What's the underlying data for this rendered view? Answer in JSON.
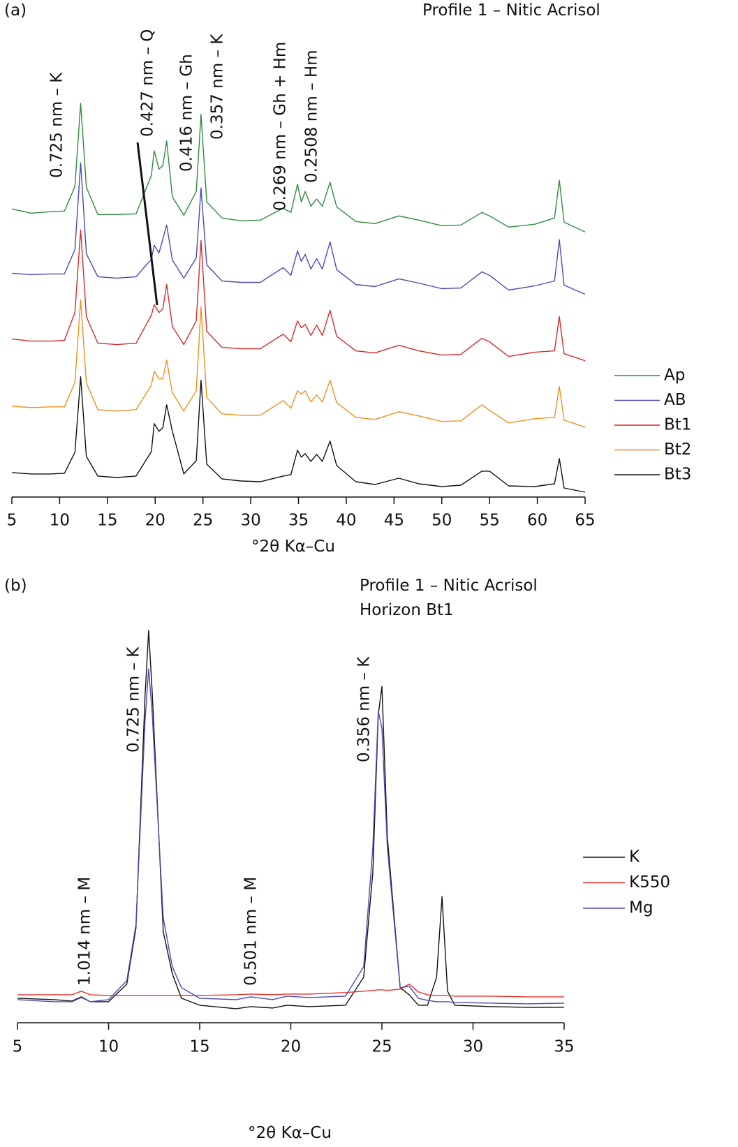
{
  "chart_data": [
    {
      "type": "line",
      "label": "(a)",
      "title": "Profile 1 – Nitic Acrisol",
      "x_label": "°2θ Kα–Cu",
      "annotations": [
        "0.725 nm – K",
        "0.427 nm – Q",
        "0.416 nm – Gh",
        "0.357 nm – K",
        "0.269 nm – Gh + Hm",
        "0.2508 nm – Hm"
      ],
      "x": [
        5,
        7,
        9,
        10.5,
        11.6,
        12.2,
        12.8,
        14,
        16,
        18,
        19.6,
        19.9,
        20.4,
        20.8,
        21.2,
        21.8,
        23,
        24.3,
        24.8,
        25.4,
        27,
        29,
        31,
        33.4,
        34.2,
        34.9,
        35.3,
        35.7,
        36.3,
        36.9,
        37.5,
        38.3,
        39,
        41,
        43,
        45.5,
        47.6,
        50,
        52,
        54.2,
        55,
        57,
        59.7,
        61.8,
        62.3,
        62.8,
        65
      ],
      "xlim": [
        5,
        65
      ],
      "xticks": [
        5,
        10,
        15,
        20,
        25,
        30,
        35,
        40,
        45,
        50,
        55,
        60,
        65
      ],
      "legend": "right",
      "series": [
        {
          "name": "Ap",
          "color": "#2e8b3e",
          "values": [
            412,
            406,
            408,
            409,
            444,
            563,
            443,
            404,
            404,
            405,
            460,
            495,
            469,
            474,
            509,
            429,
            403,
            437,
            547,
            422,
            399,
            395,
            396,
            413,
            407,
            447,
            422,
            437,
            416,
            426,
            416,
            450,
            415,
            394,
            391,
            402,
            396,
            388,
            389,
            407,
            402,
            386,
            390,
            399,
            453,
            393,
            379
          ]
        },
        {
          "name": "AB",
          "color": "#4a4ab5",
          "values": [
            320,
            318,
            319,
            319,
            354,
            478,
            348,
            315,
            313,
            315,
            340,
            360,
            349,
            369,
            389,
            339,
            313,
            342,
            442,
            332,
            309,
            307,
            307,
            328,
            317,
            352,
            337,
            347,
            326,
            341,
            326,
            365,
            325,
            304,
            301,
            312,
            306,
            298,
            299,
            322,
            317,
            296,
            302,
            309,
            368,
            303,
            290
          ]
        },
        {
          "name": "Bt1",
          "color": "#d62a2a",
          "values": [
            226,
            223,
            223,
            224,
            264,
            382,
            258,
            220,
            218,
            220,
            260,
            275,
            264,
            269,
            304,
            244,
            218,
            252,
            367,
            237,
            214,
            212,
            212,
            233,
            222,
            252,
            242,
            247,
            231,
            246,
            231,
            267,
            230,
            209,
            206,
            217,
            209,
            203,
            204,
            227,
            222,
            201,
            207,
            209,
            258,
            205,
            195
          ]
        },
        {
          "name": "Bt2",
          "color": "#f0901a",
          "values": [
            130,
            128,
            129,
            129,
            164,
            282,
            163,
            125,
            123,
            125,
            160,
            180,
            169,
            169,
            196,
            149,
            123,
            152,
            272,
            142,
            119,
            117,
            117,
            138,
            127,
            152,
            147,
            152,
            136,
            146,
            136,
            167,
            135,
            114,
            111,
            122,
            116,
            108,
            109,
            132,
            124,
            106,
            112,
            114,
            158,
            110,
            100
          ]
        },
        {
          "name": "Bt3",
          "color": "#111111",
          "values": [
            35,
            33,
            33,
            34,
            64,
            172,
            58,
            30,
            28,
            30,
            65,
            105,
            94,
            99,
            132,
            94,
            33,
            52,
            167,
            47,
            26,
            23,
            22,
            30,
            32,
            67,
            57,
            62,
            51,
            61,
            51,
            80,
            45,
            22,
            18,
            27,
            19,
            15,
            17,
            37,
            37,
            16,
            15,
            19,
            55,
            13,
            7
          ]
        }
      ]
    },
    {
      "type": "line",
      "label": "(b)",
      "title": "Profile 1 – Nitic Acrisol",
      "subtitle": "Horizon Bt1",
      "x_label": "°2θ Kα–Cu",
      "annotations": [
        "1.014 nm – M",
        "0.725 nm – K",
        "0.501 nm – M",
        "0.356 nm – K"
      ],
      "x": [
        5,
        7,
        8,
        8.5,
        9,
        10,
        11,
        11.5,
        12,
        12.2,
        12.4,
        13,
        13.5,
        14,
        15,
        17,
        17.8,
        19,
        19.8,
        21,
        23,
        24,
        24.5,
        24.8,
        25,
        25.3,
        26,
        26.5,
        27,
        27.5,
        28,
        28.3,
        28.6,
        29,
        31,
        33,
        35
      ],
      "xlim": [
        5,
        35
      ],
      "xticks": [
        5,
        10,
        15,
        20,
        25,
        30,
        35
      ],
      "legend": "right",
      "series": [
        {
          "name": "K",
          "color": "#111111",
          "values": [
            35,
            33,
            31,
            37,
            30,
            30,
            55,
            135,
            465,
            560,
            470,
            130,
            70,
            35,
            25,
            20,
            23,
            21,
            25,
            23,
            25,
            65,
            215,
            440,
            480,
            265,
            50,
            40,
            25,
            25,
            65,
            180,
            45,
            25,
            23,
            22,
            22
          ]
        },
        {
          "name": "K550",
          "color": "#e8322a",
          "values": [
            40,
            40,
            40,
            45,
            40,
            39,
            39,
            39,
            39,
            39,
            39,
            39,
            39,
            39,
            39,
            40,
            41,
            40,
            41,
            41,
            43,
            45,
            46,
            47,
            47,
            46,
            48,
            55,
            44,
            40,
            39,
            39,
            39,
            38,
            38,
            37,
            37
          ]
        },
        {
          "name": "Mg",
          "color": "#4a4ab5",
          "values": [
            33,
            30,
            30,
            36,
            30,
            33,
            60,
            140,
            430,
            505,
            440,
            150,
            80,
            50,
            35,
            33,
            37,
            33,
            38,
            36,
            38,
            80,
            250,
            445,
            420,
            250,
            50,
            52,
            35,
            32,
            30,
            30,
            30,
            29,
            28,
            27,
            28
          ]
        }
      ]
    }
  ]
}
